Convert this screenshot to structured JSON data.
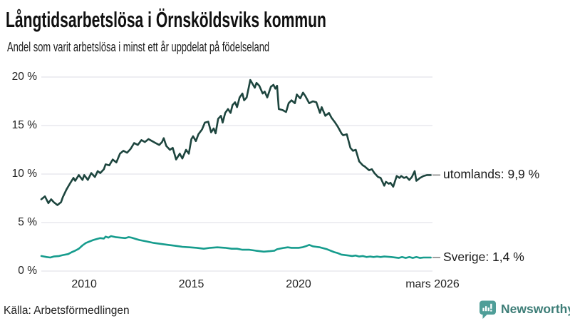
{
  "header": {
    "title": "Långtidsarbetslösa i Örnsköldsviks kommun",
    "subtitle": "Andel som varit arbetslösa i minst ett år uppdelat på födelseland"
  },
  "chart_data": {
    "type": "line",
    "title": "Långtidsarbetslösa i Örnsköldsviks kommun",
    "subtitle": "Andel som varit arbetslösa i minst ett år uppdelat på födelseland",
    "xlabel": "",
    "ylabel": "",
    "ylim": [
      0,
      20
    ],
    "xlim": [
      2008,
      2026.25
    ],
    "grid": "horizontal",
    "legend_position": "end-of-line-labels",
    "y_ticks": [
      {
        "value": 0,
        "label": "0 %"
      },
      {
        "value": 5,
        "label": "5 %"
      },
      {
        "value": 10,
        "label": "10 %"
      },
      {
        "value": 15,
        "label": "15 %"
      },
      {
        "value": 20,
        "label": "20 %"
      }
    ],
    "x_ticks": [
      {
        "value": 2010,
        "label": "2010"
      },
      {
        "value": 2015,
        "label": "2015"
      },
      {
        "value": 2020,
        "label": "2020"
      },
      {
        "value": 2026.25,
        "label": "mars 2026"
      }
    ],
    "series": [
      {
        "name": "utomlands",
        "label": "utomlands: 9,9 %",
        "last_value": 9.9,
        "color": "#1d453e",
        "points": [
          [
            2008.0,
            7.4
          ],
          [
            2008.17,
            7.7
          ],
          [
            2008.33,
            7.0
          ],
          [
            2008.46,
            7.4
          ],
          [
            2008.58,
            7.1
          ],
          [
            2008.75,
            6.8
          ],
          [
            2008.92,
            7.1
          ],
          [
            2009.0,
            7.6
          ],
          [
            2009.17,
            8.4
          ],
          [
            2009.33,
            9.0
          ],
          [
            2009.5,
            9.6
          ],
          [
            2009.58,
            9.3
          ],
          [
            2009.75,
            9.9
          ],
          [
            2009.92,
            9.4
          ],
          [
            2010.0,
            9.9
          ],
          [
            2010.17,
            9.4
          ],
          [
            2010.33,
            10.1
          ],
          [
            2010.5,
            9.7
          ],
          [
            2010.63,
            10.3
          ],
          [
            2010.75,
            10.1
          ],
          [
            2010.92,
            10.5
          ],
          [
            2011.0,
            11.0
          ],
          [
            2011.17,
            10.9
          ],
          [
            2011.33,
            11.5
          ],
          [
            2011.5,
            11.2
          ],
          [
            2011.67,
            12.1
          ],
          [
            2011.83,
            12.4
          ],
          [
            2012.0,
            12.2
          ],
          [
            2012.17,
            12.6
          ],
          [
            2012.33,
            13.2
          ],
          [
            2012.5,
            13.0
          ],
          [
            2012.67,
            13.5
          ],
          [
            2012.83,
            13.3
          ],
          [
            2013.0,
            13.6
          ],
          [
            2013.17,
            13.4
          ],
          [
            2013.33,
            13.2
          ],
          [
            2013.5,
            13.0
          ],
          [
            2013.63,
            13.3
          ],
          [
            2013.71,
            13.7
          ],
          [
            2013.83,
            12.9
          ],
          [
            2014.0,
            12.5
          ],
          [
            2014.13,
            12.7
          ],
          [
            2014.29,
            11.5
          ],
          [
            2014.46,
            12.1
          ],
          [
            2014.58,
            11.6
          ],
          [
            2014.75,
            12.5
          ],
          [
            2014.88,
            12.1
          ],
          [
            2015.0,
            13.6
          ],
          [
            2015.08,
            13.9
          ],
          [
            2015.21,
            13.4
          ],
          [
            2015.33,
            14.1
          ],
          [
            2015.5,
            14.6
          ],
          [
            2015.63,
            15.3
          ],
          [
            2015.79,
            15.4
          ],
          [
            2015.92,
            14.3
          ],
          [
            2016.04,
            14.7
          ],
          [
            2016.13,
            14.2
          ],
          [
            2016.25,
            15.7
          ],
          [
            2016.38,
            16.0
          ],
          [
            2016.46,
            15.3
          ],
          [
            2016.58,
            16.3
          ],
          [
            2016.71,
            16.7
          ],
          [
            2016.83,
            16.3
          ],
          [
            2016.92,
            17.1
          ],
          [
            2017.04,
            17.4
          ],
          [
            2017.13,
            16.9
          ],
          [
            2017.25,
            17.9
          ],
          [
            2017.38,
            18.3
          ],
          [
            2017.46,
            17.6
          ],
          [
            2017.58,
            17.9
          ],
          [
            2017.75,
            19.7
          ],
          [
            2017.88,
            19.2
          ],
          [
            2017.96,
            18.9
          ],
          [
            2018.04,
            19.4
          ],
          [
            2018.17,
            19.1
          ],
          [
            2018.33,
            18.3
          ],
          [
            2018.42,
            18.5
          ],
          [
            2018.54,
            17.9
          ],
          [
            2018.71,
            19.0
          ],
          [
            2018.83,
            19.2
          ],
          [
            2018.92,
            18.8
          ],
          [
            2019.0,
            19.1
          ],
          [
            2019.08,
            16.7
          ],
          [
            2019.25,
            16.6
          ],
          [
            2019.42,
            16.4
          ],
          [
            2019.54,
            17.3
          ],
          [
            2019.67,
            17.6
          ],
          [
            2019.83,
            17.3
          ],
          [
            2019.92,
            18.2
          ],
          [
            2020.08,
            17.8
          ],
          [
            2020.21,
            18.4
          ],
          [
            2020.33,
            18.0
          ],
          [
            2020.5,
            17.3
          ],
          [
            2020.67,
            17.5
          ],
          [
            2020.83,
            17.4
          ],
          [
            2021.0,
            16.3
          ],
          [
            2021.08,
            16.9
          ],
          [
            2021.25,
            16.0
          ],
          [
            2021.42,
            16.3
          ],
          [
            2021.54,
            15.8
          ],
          [
            2021.71,
            15.3
          ],
          [
            2021.83,
            14.9
          ],
          [
            2022.0,
            14.2
          ],
          [
            2022.08,
            14.0
          ],
          [
            2022.25,
            14.1
          ],
          [
            2022.42,
            12.7
          ],
          [
            2022.54,
            12.4
          ],
          [
            2022.67,
            12.5
          ],
          [
            2022.83,
            11.3
          ],
          [
            2023.0,
            10.9
          ],
          [
            2023.08,
            10.8
          ],
          [
            2023.29,
            10.4
          ],
          [
            2023.42,
            10.5
          ],
          [
            2023.54,
            10.1
          ],
          [
            2023.71,
            9.7
          ],
          [
            2023.83,
            9.6
          ],
          [
            2024.0,
            8.8
          ],
          [
            2024.08,
            9.2
          ],
          [
            2024.21,
            9.0
          ],
          [
            2024.29,
            9.1
          ],
          [
            2024.42,
            8.7
          ],
          [
            2024.58,
            9.8
          ],
          [
            2024.71,
            9.6
          ],
          [
            2024.79,
            9.8
          ],
          [
            2024.92,
            9.6
          ],
          [
            2025.04,
            9.7
          ],
          [
            2025.17,
            9.4
          ],
          [
            2025.29,
            9.7
          ],
          [
            2025.42,
            10.3
          ],
          [
            2025.5,
            9.3
          ],
          [
            2025.67,
            9.6
          ],
          [
            2025.83,
            9.8
          ],
          [
            2026.0,
            9.9
          ],
          [
            2026.17,
            9.9
          ]
        ]
      },
      {
        "name": "Sverige",
        "label": "Sverige: 1,4 %",
        "last_value": 1.4,
        "color": "#169c8d",
        "points": [
          [
            2008.0,
            1.55
          ],
          [
            2008.25,
            1.45
          ],
          [
            2008.42,
            1.4
          ],
          [
            2008.58,
            1.5
          ],
          [
            2008.83,
            1.55
          ],
          [
            2009.0,
            1.65
          ],
          [
            2009.25,
            1.75
          ],
          [
            2009.42,
            1.95
          ],
          [
            2009.58,
            2.1
          ],
          [
            2009.75,
            2.3
          ],
          [
            2009.92,
            2.65
          ],
          [
            2010.08,
            2.9
          ],
          [
            2010.25,
            3.05
          ],
          [
            2010.42,
            3.2
          ],
          [
            2010.58,
            3.3
          ],
          [
            2010.75,
            3.4
          ],
          [
            2010.92,
            3.35
          ],
          [
            2011.0,
            3.55
          ],
          [
            2011.13,
            3.45
          ],
          [
            2011.25,
            3.6
          ],
          [
            2011.46,
            3.5
          ],
          [
            2011.67,
            3.45
          ],
          [
            2011.92,
            3.4
          ],
          [
            2012.08,
            3.5
          ],
          [
            2012.21,
            3.45
          ],
          [
            2012.42,
            3.3
          ],
          [
            2012.58,
            3.2
          ],
          [
            2012.92,
            3.05
          ],
          [
            2013.25,
            2.9
          ],
          [
            2013.58,
            2.8
          ],
          [
            2013.92,
            2.7
          ],
          [
            2014.25,
            2.6
          ],
          [
            2014.58,
            2.5
          ],
          [
            2014.92,
            2.45
          ],
          [
            2015.25,
            2.4
          ],
          [
            2015.58,
            2.3
          ],
          [
            2015.88,
            2.4
          ],
          [
            2016.21,
            2.45
          ],
          [
            2016.58,
            2.4
          ],
          [
            2016.88,
            2.3
          ],
          [
            2017.13,
            2.3
          ],
          [
            2017.38,
            2.2
          ],
          [
            2017.71,
            2.2
          ],
          [
            2018.0,
            2.1
          ],
          [
            2018.38,
            2.0
          ],
          [
            2018.67,
            2.05
          ],
          [
            2018.88,
            2.1
          ],
          [
            2019.0,
            2.25
          ],
          [
            2019.33,
            2.4
          ],
          [
            2019.5,
            2.45
          ],
          [
            2019.67,
            2.4
          ],
          [
            2019.83,
            2.4
          ],
          [
            2020.0,
            2.4
          ],
          [
            2020.17,
            2.45
          ],
          [
            2020.33,
            2.55
          ],
          [
            2020.5,
            2.7
          ],
          [
            2020.67,
            2.55
          ],
          [
            2020.83,
            2.5
          ],
          [
            2021.0,
            2.45
          ],
          [
            2021.33,
            2.25
          ],
          [
            2021.67,
            1.95
          ],
          [
            2021.83,
            1.85
          ],
          [
            2022.0,
            1.7
          ],
          [
            2022.33,
            1.6
          ],
          [
            2022.5,
            1.55
          ],
          [
            2022.67,
            1.6
          ],
          [
            2022.83,
            1.5
          ],
          [
            2023.0,
            1.55
          ],
          [
            2023.17,
            1.45
          ],
          [
            2023.33,
            1.5
          ],
          [
            2023.5,
            1.45
          ],
          [
            2023.67,
            1.5
          ],
          [
            2023.83,
            1.45
          ],
          [
            2024.0,
            1.5
          ],
          [
            2024.33,
            1.45
          ],
          [
            2024.67,
            1.35
          ],
          [
            2024.83,
            1.45
          ],
          [
            2025.0,
            1.35
          ],
          [
            2025.17,
            1.45
          ],
          [
            2025.33,
            1.35
          ],
          [
            2025.5,
            1.45
          ],
          [
            2025.67,
            1.35
          ],
          [
            2025.83,
            1.4
          ],
          [
            2026.0,
            1.4
          ],
          [
            2026.17,
            1.4
          ]
        ]
      }
    ]
  },
  "footer": {
    "source": "Källa: Arbetsförmedlingen",
    "brand": "Newsworthy"
  },
  "colors": {
    "utomlands_line": "#1d453e",
    "sverige_line": "#169c8d",
    "grid": "#e4e4ea",
    "connector_dash": "#888888",
    "brand_teal": "#4f9e98",
    "brand_text": "#3d7d77",
    "text": "#1b1b1b"
  }
}
